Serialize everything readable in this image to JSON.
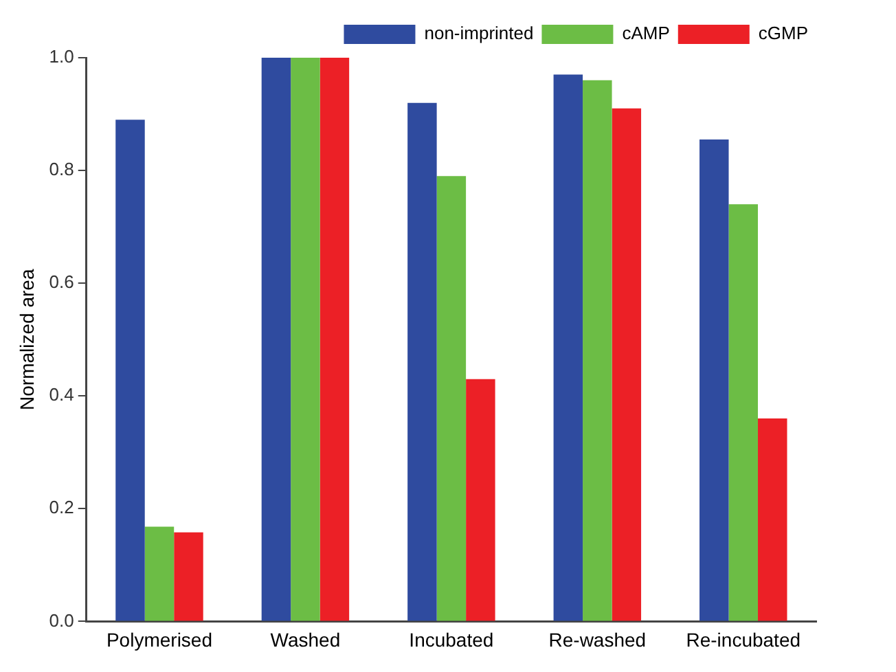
{
  "chart_data": {
    "type": "bar",
    "ylabel": "Normalized area",
    "categories": [
      "Polymerised",
      "Washed",
      "Incubated",
      "Re-washed",
      "Re-incubated"
    ],
    "series": [
      {
        "name": "non-imprinted",
        "color": "#2f4b9f",
        "values": [
          0.89,
          1.0,
          0.92,
          0.97,
          0.855
        ]
      },
      {
        "name": "cAMP",
        "color": "#6cbd45",
        "values": [
          0.168,
          1.0,
          0.79,
          0.96,
          0.74
        ]
      },
      {
        "name": "cGMP",
        "color": "#ec2026",
        "values": [
          0.158,
          1.0,
          0.43,
          0.91,
          0.36
        ]
      }
    ],
    "ylim": [
      0,
      1.0
    ],
    "yticks": [
      {
        "value": 0,
        "label": "0.0"
      },
      0.2,
      0.4,
      0.6,
      0.8,
      {
        "value": 1,
        "label": "1.0"
      }
    ],
    "grid": false,
    "legend": "top right"
  }
}
